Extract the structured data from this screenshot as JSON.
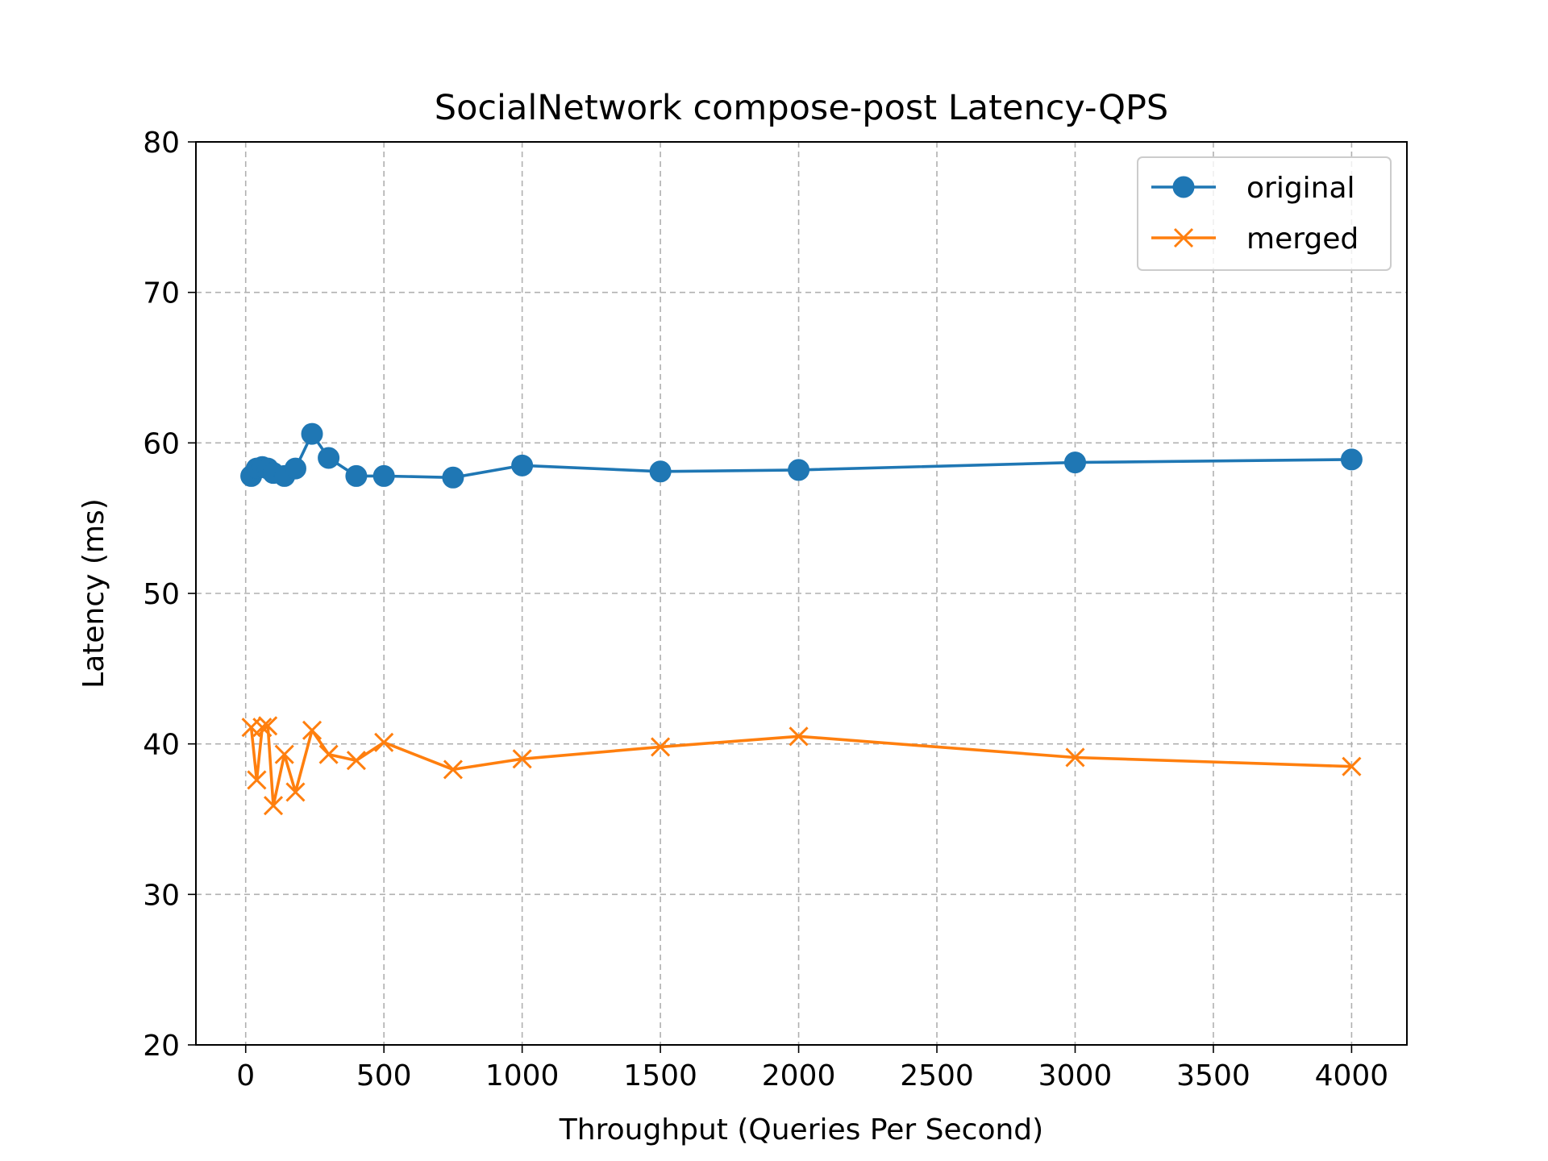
{
  "chart_data": {
    "type": "line",
    "title": "SocialNetwork compose-post Latency-QPS",
    "xlabel": "Throughput (Queries Per Second)",
    "ylabel": "Latency (ms)",
    "xlim": [
      -180,
      4200
    ],
    "ylim": [
      20,
      80
    ],
    "xticks": [
      0,
      500,
      1000,
      1500,
      2000,
      2500,
      3000,
      3500,
      4000
    ],
    "yticks": [
      20,
      30,
      40,
      50,
      60,
      70,
      80
    ],
    "grid": true,
    "legend_position": "top-right",
    "series": [
      {
        "name": "original",
        "color": "#1f77b4",
        "marker": "circle",
        "x": [
          20,
          40,
          60,
          80,
          100,
          140,
          180,
          240,
          300,
          400,
          500,
          750,
          1000,
          1500,
          2000,
          3000,
          4000
        ],
        "y": [
          57.8,
          58.3,
          58.4,
          58.3,
          58.0,
          57.8,
          58.3,
          60.6,
          59.0,
          57.8,
          57.8,
          57.7,
          58.5,
          58.1,
          58.2,
          58.7,
          58.9
        ]
      },
      {
        "name": "merged",
        "color": "#ff7f0e",
        "marker": "x",
        "x": [
          20,
          40,
          60,
          80,
          100,
          140,
          180,
          240,
          300,
          400,
          500,
          750,
          1000,
          1500,
          2000,
          3000,
          4000
        ],
        "y": [
          41.1,
          37.6,
          41.1,
          41.2,
          35.9,
          39.3,
          36.8,
          40.9,
          39.3,
          38.9,
          40.1,
          38.3,
          39.0,
          39.8,
          40.5,
          39.1,
          38.5
        ]
      }
    ]
  }
}
